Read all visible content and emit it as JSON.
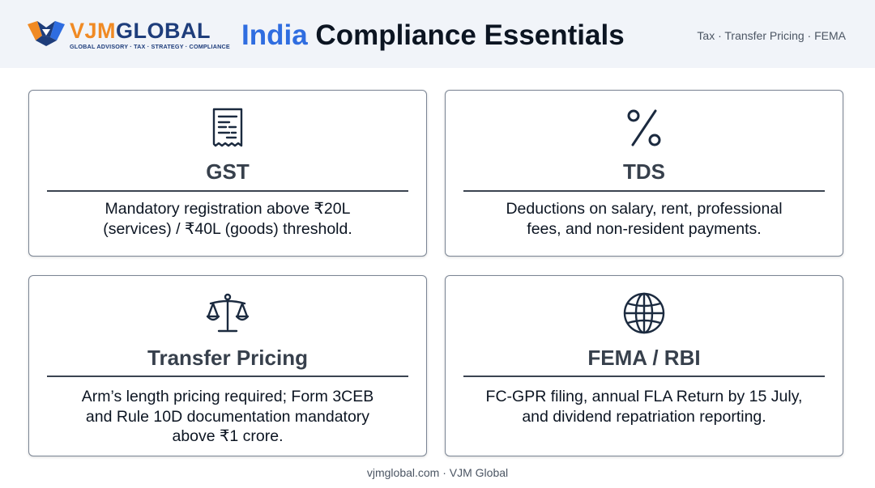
{
  "header": {
    "logo": {
      "word_a": "VJM",
      "word_b": "GLOBAL",
      "tagline": "GLOBAL ADVISORY · TAX · STRATEGY · COMPLIANCE"
    },
    "title_accent": "India",
    "title_rest": " Compliance Essentials",
    "tagline": "Tax · Transfer Pricing · FEMA"
  },
  "cards": [
    {
      "icon": "receipt-icon",
      "title": "GST",
      "line1": "Mandatory registration above ₹20L",
      "line2": "(services) / ₹40L (goods) threshold."
    },
    {
      "icon": "percent-icon",
      "title": "TDS",
      "line1": "Deductions on salary, rent, professional",
      "line2": "fees, and non-resident payments."
    },
    {
      "icon": "scales-icon",
      "title": "Transfer Pricing",
      "line1": "Arm’s length pricing required; Form 3CEB",
      "line2": "and Rule 10D documentation mandatory",
      "line3": "above ₹1 crore."
    },
    {
      "icon": "globe-icon",
      "title": "FEMA / RBI",
      "line1": "FC-GPR filing, annual FLA Return by 15 July,",
      "line2": "and dividend repatriation reporting."
    }
  ],
  "colors": {
    "accent": "#2f6de0",
    "brand_orange": "#f08a24",
    "brand_navy": "#1e3d7b",
    "icon_navy": "#1b2a3f"
  },
  "footer": {
    "text": "vjmglobal.com · VJM Global"
  }
}
